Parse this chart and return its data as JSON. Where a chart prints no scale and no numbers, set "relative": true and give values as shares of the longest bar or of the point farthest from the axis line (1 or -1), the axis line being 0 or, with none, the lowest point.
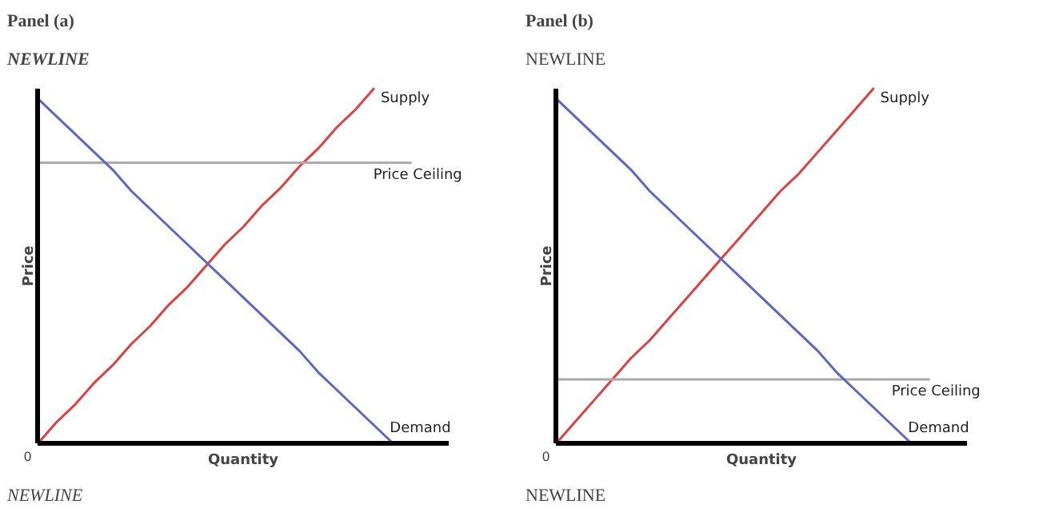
{
  "chart_data": [
    {
      "type": "line",
      "title": "Panel (a)",
      "subtitle": "NEWLINE",
      "xlabel": "Quantity",
      "ylabel": "Price",
      "relative": true,
      "line_style": "solid",
      "marker": "none",
      "categories": [
        null,
        null,
        null,
        null,
        null,
        null,
        null,
        null,
        null,
        null,
        null,
        null,
        null,
        null,
        null,
        null,
        null,
        null,
        null,
        null,
        null,
        null,
        null
      ],
      "series": [
        {
          "name": "Supply",
          "color": "#e0403f",
          "values": [
            0,
            0.06,
            0.11,
            0.17,
            0.22,
            0.28,
            0.33,
            0.39,
            0.44,
            0.5,
            0.56,
            0.61,
            0.67,
            0.72,
            0.78,
            0.83,
            0.89,
            0.94,
            1,
            null,
            null,
            null,
            null
          ]
        },
        {
          "name": "Price Ceiling",
          "color": "#a8a8a8",
          "values": [
            0.79,
            0.79,
            0.79,
            0.79,
            0.79,
            0.79,
            0.79,
            0.79,
            0.79,
            0.79,
            0.79,
            0.79,
            0.79,
            0.79,
            0.79,
            0.79,
            0.79,
            0.79,
            0.79,
            0.79,
            0.79,
            null,
            null
          ]
        },
        {
          "name": "Demand",
          "color": "#5a68c4",
          "values": [
            0.97,
            0.92,
            0.87,
            0.82,
            0.77,
            0.71,
            0.66,
            0.61,
            0.56,
            0.51,
            0.46,
            0.41,
            0.36,
            0.31,
            0.26,
            0.2,
            0.15,
            0.1,
            0.05,
            0,
            null,
            null,
            null
          ]
        }
      ],
      "annotations": [
        "0",
        "NEWLINE"
      ]
    },
    {
      "type": "line",
      "title": "Panel (b)",
      "subtitle": "NEWLINE",
      "xlabel": "Quantity",
      "ylabel": "Price",
      "relative": true,
      "line_style": "solid",
      "marker": "none",
      "categories": [
        null,
        null,
        null,
        null,
        null,
        null,
        null,
        null,
        null,
        null,
        null,
        null,
        null,
        null,
        null,
        null,
        null,
        null,
        null,
        null,
        null,
        null,
        null
      ],
      "series": [
        {
          "name": "Supply",
          "color": "#e0403f",
          "values": [
            0,
            0.06,
            0.12,
            0.18,
            0.24,
            0.29,
            0.35,
            0.41,
            0.47,
            0.53,
            0.59,
            0.65,
            0.71,
            0.76,
            0.82,
            0.88,
            0.94,
            1,
            null,
            null,
            null,
            null,
            null
          ]
        },
        {
          "name": "Price Ceiling",
          "color": "#a8a8a8",
          "values": [
            0.18,
            0.18,
            0.18,
            0.18,
            0.18,
            0.18,
            0.18,
            0.18,
            0.18,
            0.18,
            0.18,
            0.18,
            0.18,
            0.18,
            0.18,
            0.18,
            0.18,
            0.18,
            0.18,
            0.18,
            0.18,
            null,
            null
          ]
        },
        {
          "name": "Demand",
          "color": "#5a68c4",
          "values": [
            0.97,
            0.92,
            0.87,
            0.82,
            0.77,
            0.71,
            0.66,
            0.61,
            0.56,
            0.51,
            0.46,
            0.41,
            0.36,
            0.31,
            0.26,
            0.2,
            0.15,
            0.1,
            0.05,
            0,
            null,
            null,
            null
          ]
        }
      ],
      "annotations": [
        "0",
        "NEWLINE"
      ]
    }
  ]
}
